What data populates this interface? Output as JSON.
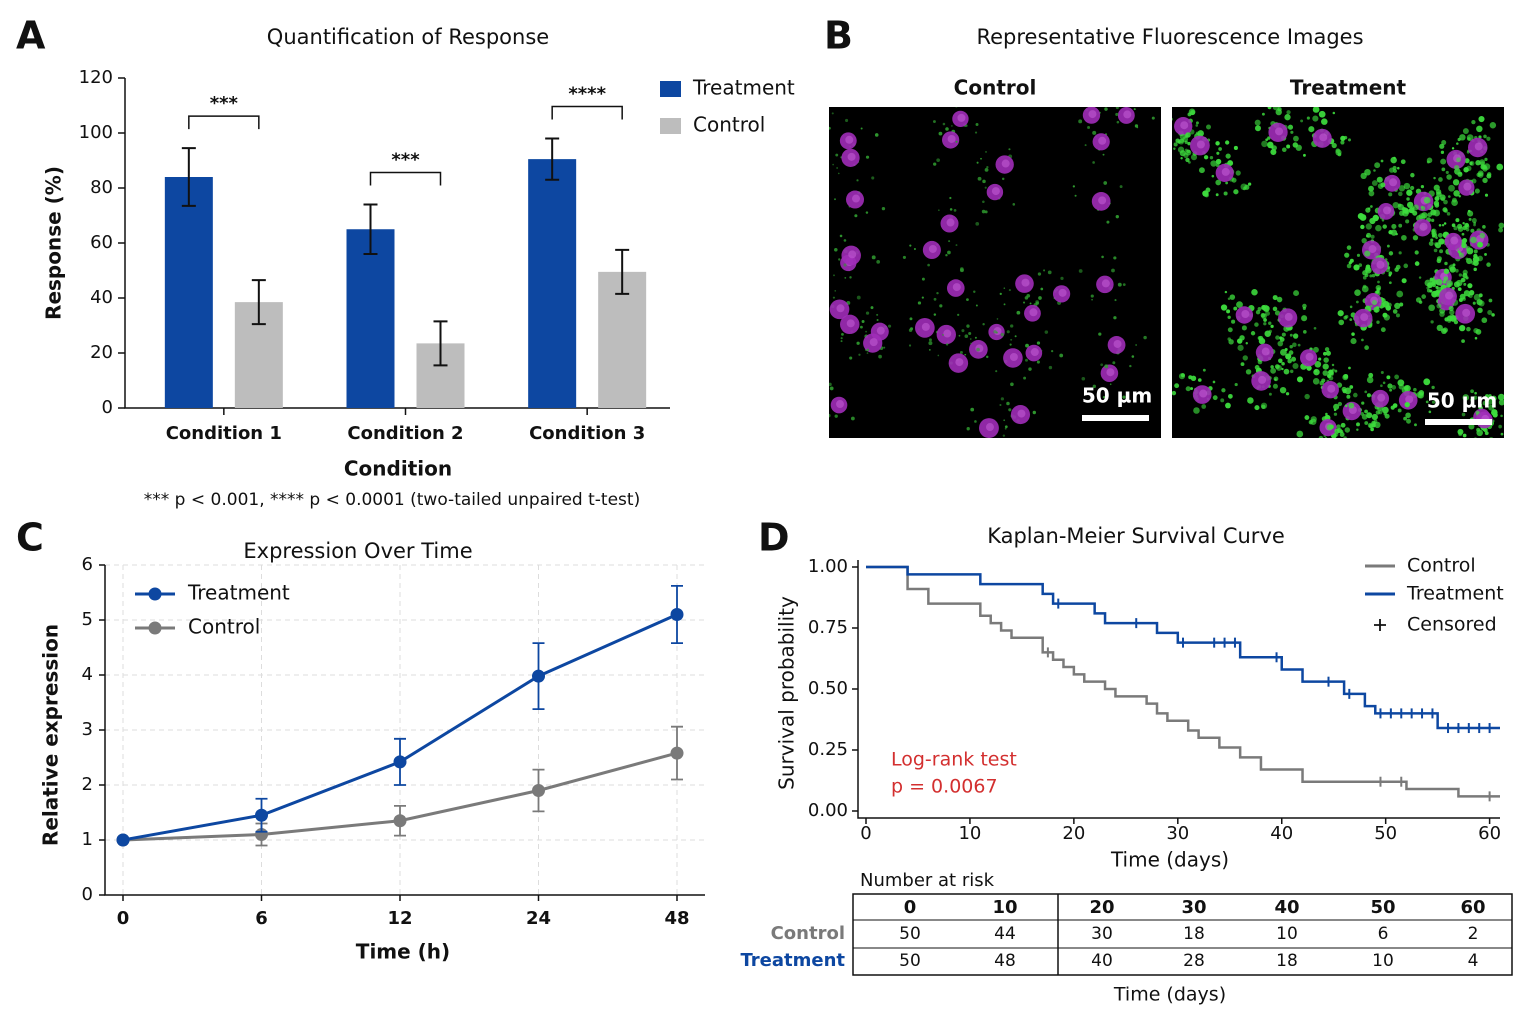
{
  "chart_data": [
    {
      "type": "bar",
      "panel": "A",
      "title": "Quantification of Response",
      "x_label": "Condition",
      "y_label": "Response (%)",
      "note": "*** p < 0.001, **** p < 0.0001 (two-tailed unpaired t-test)",
      "categories": [
        "Condition 1",
        "Condition 2",
        "Condition 3"
      ],
      "series": [
        {
          "name": "Treatment",
          "color": "#0d47a1",
          "values": [
            84,
            65,
            90.5
          ],
          "errors": [
            10.5,
            9,
            7.5
          ]
        },
        {
          "name": "Control",
          "color": "#bdbdbd",
          "values": [
            38.5,
            23.5,
            49.5
          ],
          "errors": [
            8,
            8,
            8
          ]
        }
      ],
      "significance": [
        "***",
        "***",
        "****"
      ],
      "ylim": [
        0,
        120
      ],
      "yticks": [
        0,
        20,
        40,
        60,
        80,
        100,
        120
      ],
      "legend": "upper right"
    },
    {
      "type": "line",
      "panel": "C",
      "title": "Expression Over Time",
      "x_label": "Time (h)",
      "y_label": "Relative expression",
      "categories": [
        "0",
        "6",
        "12",
        "24",
        "48"
      ],
      "series": [
        {
          "name": "Treatment",
          "color": "#0d47a1",
          "values": [
            1,
            1.45,
            2.42,
            3.98,
            5.1
          ],
          "errors": [
            0.02,
            0.3,
            0.42,
            0.6,
            0.52
          ]
        },
        {
          "name": "Control",
          "color": "#7a7a7a",
          "values": [
            1,
            1.1,
            1.35,
            1.9,
            2.58
          ],
          "errors": [
            0.02,
            0.2,
            0.27,
            0.38,
            0.48
          ]
        }
      ],
      "ylim": [
        0,
        6
      ],
      "yticks": [
        0,
        1,
        2,
        3,
        4,
        5,
        6
      ],
      "grid": true,
      "legend": "upper left"
    },
    {
      "type": "survival",
      "panel": "D",
      "title": "Kaplan-Meier Survival Curve",
      "x_label": "Time (days)",
      "y_label": "Survival probability",
      "annotation": [
        "Log-rank test",
        "p = 0.0067"
      ],
      "censored_label": "Censored",
      "series": [
        {
          "name": "Control",
          "color": "#7a7a7a",
          "x": [
            0,
            4,
            6,
            11,
            12,
            13,
            14,
            17,
            18,
            19,
            20,
            21,
            23,
            24,
            27,
            28,
            29,
            31,
            32,
            34,
            36,
            38,
            42,
            52,
            57,
            61
          ],
          "values": [
            1,
            0.91,
            0.85,
            0.8,
            0.77,
            0.74,
            0.71,
            0.65,
            0.62,
            0.59,
            0.56,
            0.53,
            0.5,
            0.47,
            0.44,
            0.4,
            0.37,
            0.33,
            0.3,
            0.26,
            0.22,
            0.17,
            0.12,
            0.09,
            0.06,
            0.06
          ],
          "censored_x": [
            17.5,
            49.5,
            51.5,
            60
          ],
          "censored_values": [
            0.65,
            0.12,
            0.12,
            0.06
          ]
        },
        {
          "name": "Treatment",
          "color": "#0d47a1",
          "x": [
            0,
            4,
            11,
            17,
            18,
            22,
            23,
            28,
            30,
            36,
            40,
            42,
            46,
            48,
            49,
            55,
            61
          ],
          "values": [
            1,
            0.97,
            0.93,
            0.89,
            0.85,
            0.81,
            0.77,
            0.73,
            0.69,
            0.63,
            0.58,
            0.53,
            0.48,
            0.43,
            0.4,
            0.34,
            0.34
          ],
          "censored_x": [
            18.5,
            26,
            30.5,
            33.5,
            34.5,
            35.5,
            39.5,
            44.5,
            46.5,
            49.5,
            50.5,
            51.5,
            52.5,
            53.5,
            54.5,
            56,
            57,
            58,
            59,
            60
          ],
          "censored_values": [
            0.85,
            0.77,
            0.69,
            0.69,
            0.69,
            0.69,
            0.63,
            0.53,
            0.48,
            0.4,
            0.4,
            0.4,
            0.4,
            0.4,
            0.4,
            0.34,
            0.34,
            0.34,
            0.34,
            0.34
          ]
        }
      ],
      "xlim": [
        0,
        61
      ],
      "xticks": [
        0,
        10,
        20,
        30,
        40,
        50,
        60
      ],
      "ylim": [
        0,
        1
      ],
      "yticks": [
        {
          "value": 0,
          "label": "0.00"
        },
        {
          "value": 0.25,
          "label": "0.25"
        },
        {
          "value": 0.5,
          "label": "0.50"
        },
        {
          "value": 0.75,
          "label": "0.75"
        },
        {
          "value": 1,
          "label": "1.00"
        }
      ],
      "legend": "upper right",
      "risk_table": {
        "title": "Number at risk",
        "x_label": "Time (days)",
        "times": [
          0,
          10,
          20,
          30,
          40,
          50,
          60
        ],
        "rows": [
          {
            "name": "Control",
            "color": "#7a7a7a",
            "values": [
              50,
              44,
              30,
              18,
              10,
              6,
              2
            ]
          },
          {
            "name": "Treatment",
            "color": "#0d47a1",
            "values": [
              50,
              48,
              40,
              28,
              18,
              10,
              4
            ]
          }
        ]
      }
    }
  ],
  "images": {
    "panel": "B",
    "title": "Representative Fluorescence Images",
    "panels": [
      {
        "label": "Control",
        "scale_bar": "50 µm"
      },
      {
        "label": "Treatment",
        "scale_bar": "50 µm"
      }
    ]
  }
}
